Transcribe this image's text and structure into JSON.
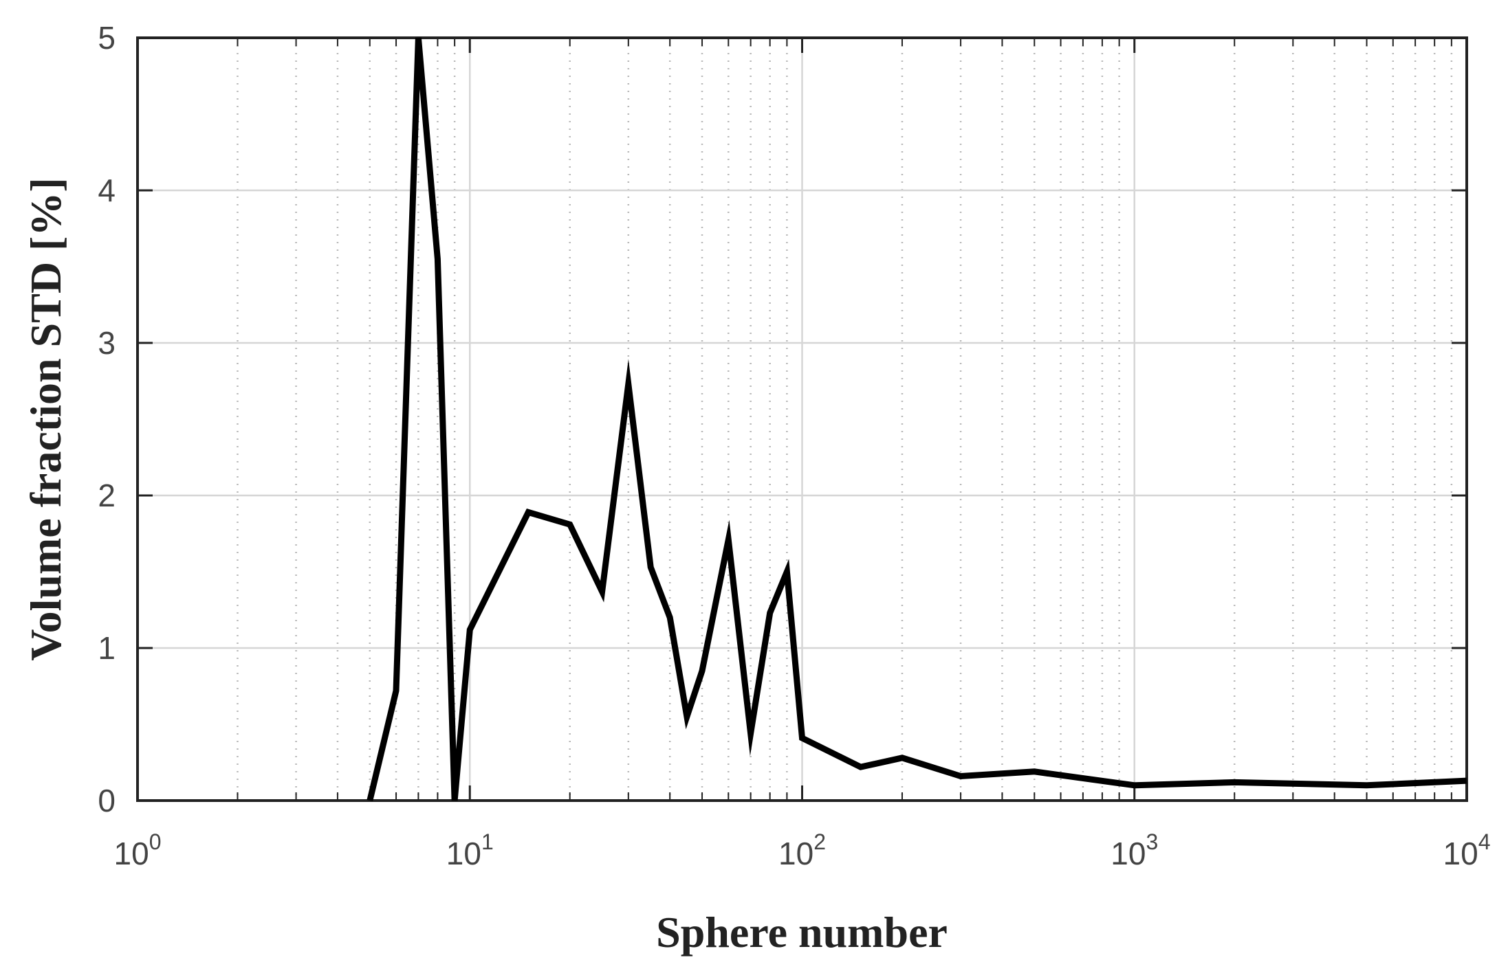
{
  "chart_data": {
    "type": "line",
    "title": "",
    "xlabel": "Sphere number",
    "ylabel": "Volume fraction STD [%]",
    "xscale": "log",
    "xlim": [
      1,
      10000
    ],
    "ylim": [
      0,
      5
    ],
    "grid": true,
    "minor_grid": true,
    "line_color": "#000000",
    "x_ticks": [
      {
        "value": 1,
        "base": "10",
        "exp": "0"
      },
      {
        "value": 10,
        "base": "10",
        "exp": "1"
      },
      {
        "value": 100,
        "base": "10",
        "exp": "2"
      },
      {
        "value": 1000,
        "base": "10",
        "exp": "3"
      },
      {
        "value": 10000,
        "base": "10",
        "exp": "4"
      }
    ],
    "y_ticks": [
      {
        "value": 0,
        "label": "0"
      },
      {
        "value": 1,
        "label": "1"
      },
      {
        "value": 2,
        "label": "2"
      },
      {
        "value": 3,
        "label": "3"
      },
      {
        "value": 4,
        "label": "4"
      },
      {
        "value": 5,
        "label": "5"
      }
    ],
    "series": [
      {
        "x": [
          5,
          6,
          7,
          8,
          9,
          10,
          15,
          20,
          25,
          30,
          35,
          40,
          45,
          50,
          60,
          70,
          80,
          90,
          100,
          150,
          200,
          300,
          500,
          1000,
          2000,
          5000,
          10000
        ],
        "y": [
          0,
          0.72,
          5.0,
          3.55,
          0,
          1.12,
          1.89,
          1.81,
          1.37,
          2.73,
          1.53,
          1.2,
          0.55,
          0.85,
          1.71,
          0.44,
          1.23,
          1.5,
          0.41,
          0.22,
          0.28,
          0.16,
          0.19,
          0.1,
          0.12,
          0.1,
          0.13
        ]
      }
    ]
  }
}
